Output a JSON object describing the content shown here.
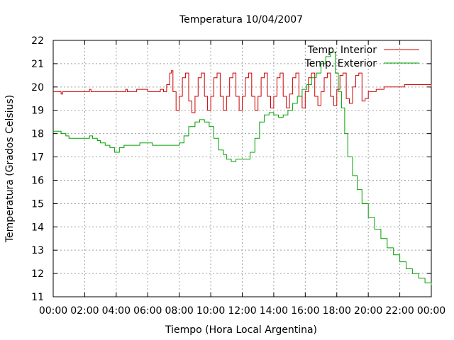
{
  "chart_data": {
    "type": "line",
    "title": "Temperatura 10/04/2007",
    "xlabel": "Tiempo (Hora Local Argentina)",
    "ylabel": "Temperatura (Grados Celsius)",
    "x_ticks": [
      "00:00",
      "02:00",
      "04:00",
      "06:00",
      "08:00",
      "10:00",
      "12:00",
      "14:00",
      "16:00",
      "18:00",
      "20:00",
      "22:00",
      "00:00"
    ],
    "y_ticks": [
      "11",
      "12",
      "13",
      "14",
      "15",
      "16",
      "17",
      "18",
      "19",
      "20",
      "21",
      "22"
    ],
    "xlim_hours": [
      0,
      24
    ],
    "ylim": [
      11,
      22
    ],
    "grid": true,
    "legend_position": "top-right",
    "series": [
      {
        "name": "Temp. Interior",
        "color": "#cc0000",
        "x_hours": [
          0,
          0.5,
          0.5,
          0.6,
          0.6,
          2.2,
          2.3,
          2.4,
          2.5,
          4.5,
          4.6,
          4.7,
          5.2,
          5.3,
          5.8,
          6.0,
          6.6,
          6.8,
          7.0,
          7.2,
          7.4,
          7.5,
          7.6,
          7.8,
          8.0,
          8.2,
          8.4,
          8.6,
          8.8,
          9.0,
          9.2,
          9.4,
          9.6,
          9.8,
          10.0,
          10.2,
          10.4,
          10.6,
          10.8,
          11.0,
          11.2,
          11.4,
          11.6,
          11.8,
          12.0,
          12.2,
          12.4,
          12.6,
          12.8,
          13.0,
          13.2,
          13.4,
          13.6,
          13.8,
          14.0,
          14.2,
          14.4,
          14.6,
          14.8,
          15.0,
          15.2,
          15.4,
          15.6,
          15.8,
          16.0,
          16.2,
          16.4,
          16.6,
          16.8,
          17.0,
          17.2,
          17.4,
          17.6,
          17.8,
          18.0,
          18.2,
          18.4,
          18.6,
          18.8,
          19.0,
          19.2,
          19.4,
          19.6,
          19.8,
          20.0,
          20.5,
          21.0,
          21.5,
          22.0,
          22.3,
          22.6,
          23.0,
          23.3,
          23.6,
          23.8,
          24.0
        ],
        "values": [
          19.8,
          19.8,
          19.7,
          19.7,
          19.8,
          19.8,
          19.9,
          19.8,
          19.8,
          19.8,
          19.9,
          19.8,
          19.8,
          19.9,
          19.9,
          19.8,
          19.8,
          19.9,
          19.8,
          20.1,
          20.6,
          20.7,
          19.8,
          19.0,
          19.6,
          20.4,
          20.6,
          19.4,
          18.9,
          19.6,
          20.4,
          20.6,
          19.6,
          19.0,
          19.6,
          20.4,
          20.6,
          19.6,
          19.0,
          19.6,
          20.4,
          20.6,
          19.6,
          19.0,
          19.6,
          20.4,
          20.6,
          19.6,
          19.0,
          19.6,
          20.4,
          20.6,
          19.6,
          19.1,
          19.6,
          20.4,
          20.6,
          19.6,
          19.1,
          19.7,
          20.4,
          20.6,
          19.6,
          19.1,
          19.8,
          20.4,
          20.6,
          19.6,
          19.2,
          19.8,
          20.4,
          20.6,
          19.6,
          19.2,
          19.9,
          20.5,
          20.6,
          19.5,
          19.3,
          20.0,
          20.5,
          20.6,
          19.4,
          19.5,
          19.8,
          19.9,
          20.0,
          20.0,
          20.0,
          20.1,
          20.1,
          20.1,
          20.1,
          20.1,
          20.1,
          20.0
        ]
      },
      {
        "name": "Temp. Exterior",
        "color": "#00a000",
        "x_hours": [
          0,
          0.3,
          0.5,
          0.8,
          1.0,
          1.5,
          2.0,
          2.3,
          2.5,
          2.8,
          3.0,
          3.3,
          3.6,
          3.9,
          4.2,
          4.5,
          4.8,
          5.1,
          5.5,
          6.0,
          6.3,
          6.6,
          7.0,
          7.3,
          7.6,
          8.0,
          8.3,
          8.6,
          9.0,
          9.3,
          9.6,
          9.9,
          10.2,
          10.5,
          10.8,
          11.0,
          11.3,
          11.6,
          11.9,
          12.2,
          12.5,
          12.8,
          13.1,
          13.4,
          13.7,
          14.0,
          14.3,
          14.6,
          14.9,
          15.2,
          15.5,
          15.8,
          16.1,
          16.4,
          16.7,
          17.0,
          17.3,
          17.6,
          17.9,
          18.1,
          18.3,
          18.5,
          18.7,
          19.0,
          19.3,
          19.6,
          20.0,
          20.4,
          20.8,
          21.2,
          21.6,
          22.0,
          22.4,
          22.8,
          23.2,
          23.6,
          24.0
        ],
        "values": [
          18.1,
          18.1,
          18.0,
          17.9,
          17.8,
          17.8,
          17.8,
          17.9,
          17.8,
          17.7,
          17.6,
          17.5,
          17.4,
          17.2,
          17.4,
          17.5,
          17.5,
          17.5,
          17.6,
          17.6,
          17.5,
          17.5,
          17.5,
          17.5,
          17.5,
          17.6,
          17.9,
          18.3,
          18.5,
          18.6,
          18.5,
          18.3,
          17.8,
          17.3,
          17.1,
          16.9,
          16.8,
          16.9,
          16.9,
          16.9,
          17.2,
          17.8,
          18.5,
          18.8,
          18.9,
          18.8,
          18.7,
          18.8,
          19.0,
          19.3,
          19.6,
          19.9,
          20.1,
          20.4,
          20.6,
          21.0,
          21.3,
          21.5,
          20.6,
          19.8,
          19.1,
          18.0,
          17.0,
          16.2,
          15.6,
          15.0,
          14.4,
          13.9,
          13.5,
          13.1,
          12.8,
          12.5,
          12.2,
          12.0,
          11.8,
          11.6,
          11.5
        ]
      }
    ]
  }
}
